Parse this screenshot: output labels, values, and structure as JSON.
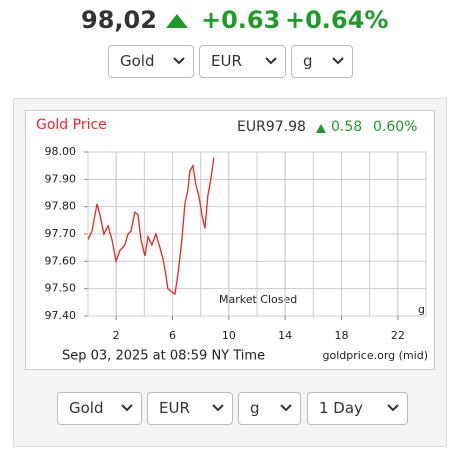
{
  "header": {
    "price": "98,02",
    "change": "+0.63",
    "percent": "+0.64%"
  },
  "top_selects": [
    "Gold",
    "EUR",
    "g"
  ],
  "bottom_selects": [
    "Gold",
    "EUR",
    "g",
    "1 Day"
  ],
  "chart_data": {
    "type": "line",
    "title": "Gold Price",
    "quote": "EUR97.98",
    "quote_change": "0.58",
    "quote_percent": "0.60%",
    "annotation": "Market Closed",
    "unit": "g",
    "footer_left": "Sep 03, 2025 at 08:59 NY Time",
    "footer_right": "goldprice.org (mid)",
    "color": "#e8262a",
    "grid": true,
    "x": [
      0,
      0.28,
      0.64,
      0.85,
      1.13,
      1.42,
      1.7,
      1.99,
      2.27,
      2.62,
      2.84,
      3.05,
      3.33,
      3.55,
      3.76,
      4.04,
      4.26,
      4.54,
      4.82,
      5.11,
      5.32,
      5.53,
      5.67,
      5.89,
      6.17,
      6.38,
      6.67,
      6.88,
      7.09,
      7.23,
      7.45,
      7.66,
      7.87,
      8.09,
      8.3,
      8.51,
      8.72,
      8.94
    ],
    "values": [
      97.68,
      97.71,
      97.81,
      97.77,
      97.7,
      97.73,
      97.68,
      97.6,
      97.64,
      97.66,
      97.7,
      97.71,
      97.78,
      97.77,
      97.68,
      97.62,
      97.69,
      97.66,
      97.7,
      97.65,
      97.61,
      97.55,
      97.5,
      97.49,
      97.48,
      97.55,
      97.68,
      97.81,
      97.86,
      97.93,
      97.95,
      97.88,
      97.84,
      97.77,
      97.72,
      97.84,
      97.9,
      97.98
    ],
    "xlim": [
      0,
      24
    ],
    "xticks": [
      2,
      6,
      10,
      14,
      18,
      22
    ],
    "ylim": [
      97.4,
      98
    ],
    "yticks": [
      {
        "value": 97.4,
        "label": "97.40"
      },
      {
        "value": 97.5,
        "label": "97.50"
      },
      {
        "value": 97.6,
        "label": "97.60"
      },
      {
        "value": 97.7,
        "label": "97.70"
      },
      {
        "value": 97.8,
        "label": "97.80"
      },
      {
        "value": 97.9,
        "label": "97.90"
      },
      {
        "value": 98,
        "label": "98.00"
      }
    ]
  }
}
